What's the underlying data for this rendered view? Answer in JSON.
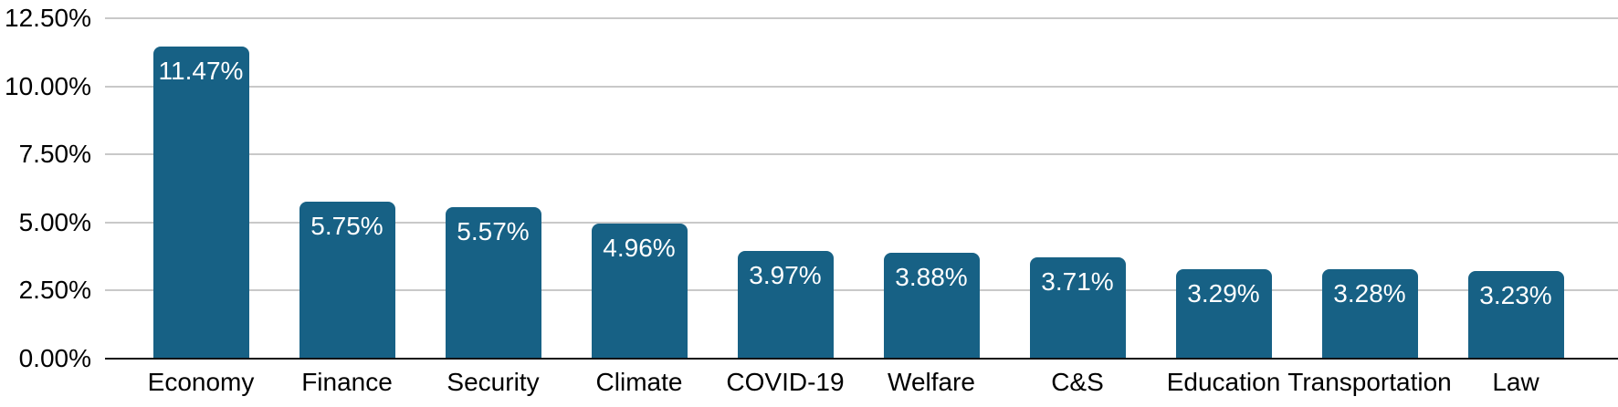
{
  "chart_data": {
    "type": "bar",
    "title": "",
    "xlabel": "",
    "ylabel": "",
    "categories": [
      "Economy",
      "Finance",
      "Security",
      "Climate",
      "COVID-19",
      "Welfare",
      "C&S",
      "Education",
      "Transportation",
      "Law"
    ],
    "values": [
      11.47,
      5.75,
      5.57,
      4.96,
      3.97,
      3.88,
      3.71,
      3.29,
      3.28,
      3.23
    ],
    "value_labels": [
      "11.47%",
      "5.75%",
      "5.57%",
      "4.96%",
      "3.97%",
      "3.88%",
      "3.71%",
      "3.29%",
      "3.28%",
      "3.23%"
    ],
    "y_ticks": [
      "0.00%",
      "2.50%",
      "5.00%",
      "7.50%",
      "10.00%",
      "12.50%"
    ],
    "y_tick_values": [
      0,
      2.5,
      5,
      7.5,
      10,
      12.5
    ],
    "ylim": [
      0,
      12.5
    ],
    "grid": true,
    "legend": "none",
    "bar_color": "#176185",
    "bar_label_color": "#ffffff",
    "axis_text_color": "#000000",
    "gridline_color": "#c9c9c9",
    "axis_line_color": "#111111",
    "background": "#ffffff"
  }
}
